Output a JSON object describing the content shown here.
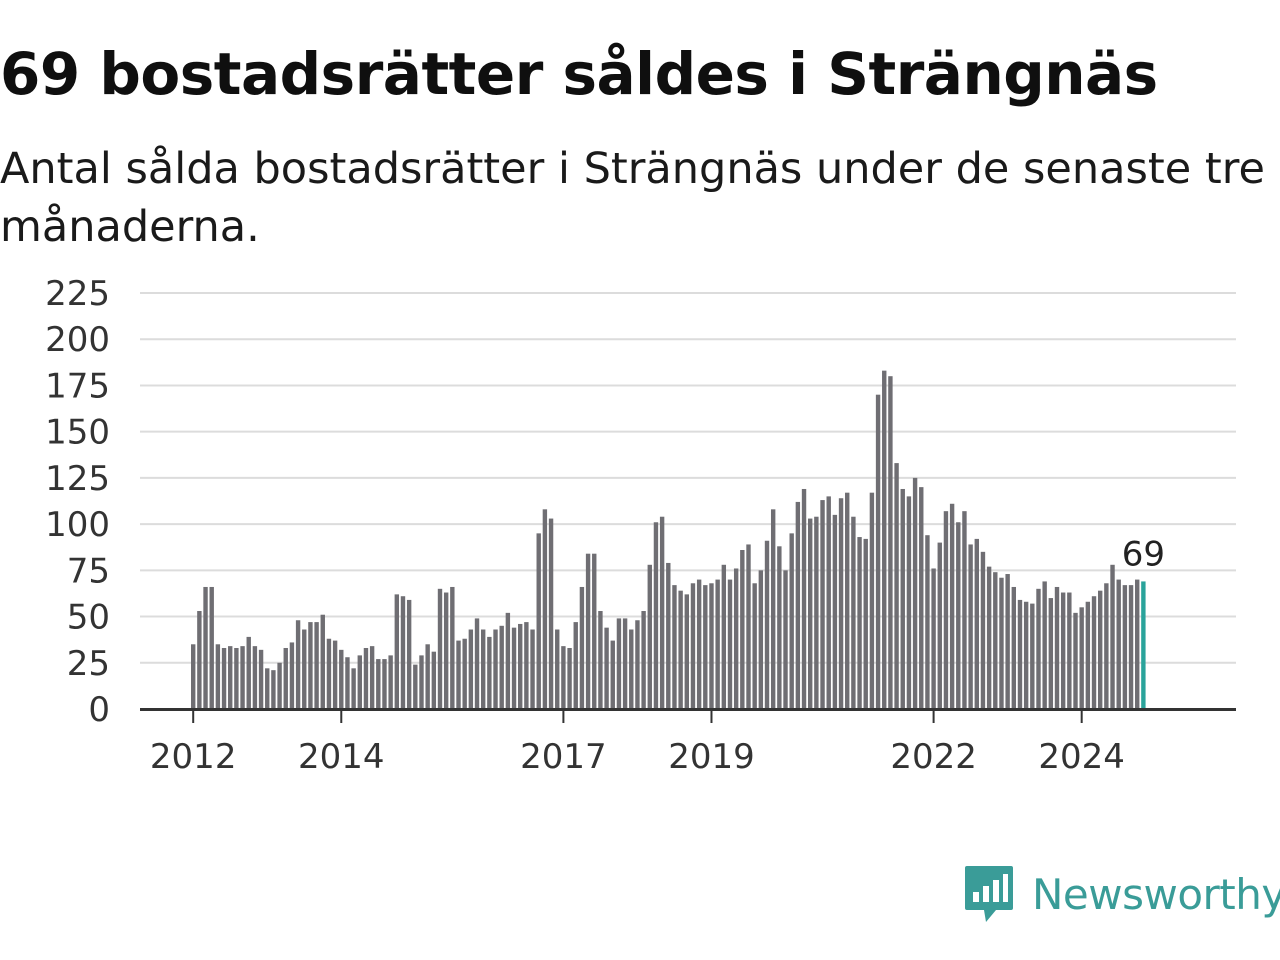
{
  "header": {
    "title": "69 bostadsrätter såldes i Strängnäs",
    "subtitle": "Antal sålda bostadsrätter i Strängnäs under de senaste tre månaderna."
  },
  "brand": {
    "name": "Newsworthy",
    "icon": "bar-chart-speech-bubble-icon",
    "color": "#3a9c98"
  },
  "chart_data": {
    "type": "bar",
    "xlabel": "",
    "ylabel": "",
    "ylim": [
      0,
      225
    ],
    "yticks": [
      "0",
      "25",
      "50",
      "75",
      "100",
      "125",
      "150",
      "175",
      "200",
      "225"
    ],
    "xticks": [
      "2012",
      "2014",
      "2017",
      "2019",
      "2022",
      "2024"
    ],
    "grid": true,
    "bar_color": "#6f6e73",
    "highlight_color": "#2aa39b",
    "highlight_label": "69",
    "start_month": "2012-01",
    "values": [
      35,
      53,
      66,
      66,
      35,
      33,
      34,
      33,
      34,
      39,
      34,
      32,
      22,
      21,
      25,
      33,
      36,
      48,
      43,
      47,
      47,
      51,
      38,
      37,
      32,
      28,
      22,
      29,
      33,
      34,
      27,
      27,
      29,
      62,
      61,
      59,
      24,
      29,
      35,
      31,
      65,
      63,
      66,
      37,
      38,
      43,
      49,
      43,
      39,
      43,
      45,
      52,
      44,
      46,
      47,
      43,
      95,
      108,
      103,
      43,
      34,
      33,
      47,
      66,
      84,
      84,
      53,
      44,
      37,
      49,
      49,
      43,
      48,
      53,
      78,
      101,
      104,
      79,
      67,
      64,
      62,
      68,
      70,
      67,
      68,
      70,
      78,
      70,
      76,
      86,
      89,
      68,
      75,
      91,
      108,
      88,
      75,
      95,
      112,
      119,
      103,
      104,
      113,
      115,
      105,
      114,
      117,
      104,
      93,
      92,
      117,
      170,
      183,
      180,
      133,
      119,
      115,
      125,
      120,
      94,
      76,
      90,
      107,
      111,
      101,
      107,
      89,
      92,
      85,
      77,
      74,
      71,
      73,
      66,
      59,
      58,
      57,
      65,
      69,
      60,
      66,
      63,
      63,
      52,
      55,
      58,
      61,
      64,
      68,
      78,
      70,
      67,
      67,
      70,
      69
    ]
  }
}
